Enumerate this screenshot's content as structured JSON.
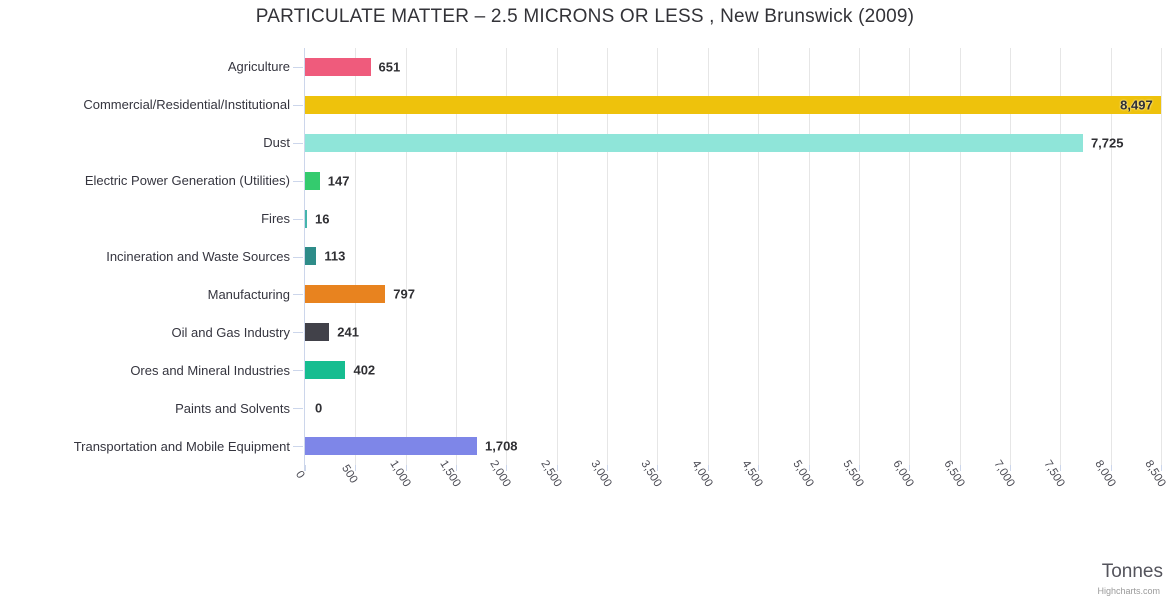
{
  "title": "PARTICULATE MATTER – 2.5 MICRONS OR LESS , New Brunswick (2009)",
  "credits": "Highcharts.com",
  "chart_data": {
    "type": "bar",
    "orientation": "horizontal",
    "title": "PARTICULATE MATTER – 2.5 MICRONS OR LESS , New Brunswick (2009)",
    "categories": [
      "Agriculture",
      "Commercial/Residential/Institutional",
      "Dust",
      "Electric Power Generation (Utilities)",
      "Fires",
      "Incineration and Waste Sources",
      "Manufacturing",
      "Oil and Gas Industry",
      "Ores and Mineral Industries",
      "Paints and Solvents",
      "Transportation and Mobile Equipment"
    ],
    "values": [
      651,
      8497,
      7725,
      147,
      16,
      113,
      797,
      241,
      402,
      0,
      1708
    ],
    "value_labels": [
      "651",
      "8,497",
      "7,725",
      "147",
      "16",
      "113",
      "797",
      "241",
      "402",
      "0",
      "1,708"
    ],
    "bar_colors": [
      "#ef5b7c",
      "#eec20c",
      "#8fe5d9",
      "#34cb6e",
      "#45b5ac",
      "#2e8c89",
      "#e8831f",
      "#414149",
      "#16bd90",
      "#16bd90",
      "#7e86e8"
    ],
    "xlabel": "Tonnes",
    "ylabel": "",
    "xlim": [
      0,
      8500
    ],
    "tick_interval": 500,
    "xtick_labels": [
      "0",
      "500",
      "1,000",
      "1,500",
      "2,000",
      "2,500",
      "3,000",
      "3,500",
      "4,000",
      "4,500",
      "5,000",
      "5,500",
      "6,000",
      "6,500",
      "7,000",
      "7,500",
      "8,000",
      "8,500"
    ],
    "grid": true,
    "legend": false,
    "colors": {
      "axis_line": "#ccd6eb",
      "grid_line": "#e6e6e6",
      "tick_mark": "#ccd6eb"
    }
  }
}
